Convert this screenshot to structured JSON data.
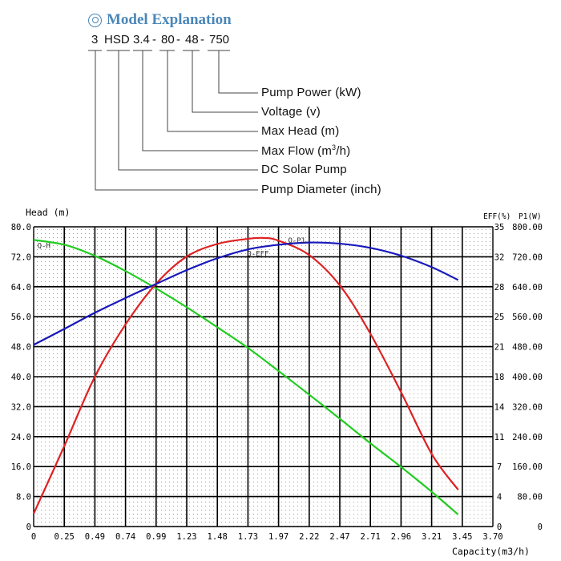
{
  "explanation": {
    "title": "Model Explanation",
    "title_color": "#4a86b8",
    "code_parts": [
      "3",
      "HSD",
      "3.4",
      "-",
      "80",
      "-",
      "48",
      "-",
      "750"
    ],
    "descriptions": {
      "power": "Pump Power (kW)",
      "voltage": "Voltage (v)",
      "head": "Max Head (m)",
      "flow_pre": "Max Flow (m",
      "flow_sup": "3",
      "flow_post": "/h)",
      "type": "DC Solar Pump",
      "diameter": "Pump Diameter (inch)"
    }
  },
  "chart_data": {
    "type": "line",
    "xlabel": "Capacity(m3/h)",
    "ylabel": "Head (m)",
    "y2label": "EFF(%)",
    "y3label": "P1(W)",
    "x_ticks": [
      "0",
      "0.25",
      "0.49",
      "0.74",
      "0.99",
      "1.23",
      "1.48",
      "1.73",
      "1.97",
      "2.22",
      "2.47",
      "2.71",
      "2.96",
      "3.21",
      "3.45",
      "3.70"
    ],
    "y_ticks": [
      "0",
      "8.0",
      "16.0",
      "24.0",
      "32.0",
      "40.0",
      "48.0",
      "56.0",
      "64.0",
      "72.0",
      "80.0"
    ],
    "y2_ticks": [
      "0",
      "4",
      "7",
      "11",
      "14",
      "18",
      "21",
      "25",
      "28",
      "32",
      "35"
    ],
    "y3_ticks": [
      "0",
      "80.00",
      "160.00",
      "240.00",
      "320.00",
      "400.00",
      "480.00",
      "560.00",
      "640.00",
      "720.00",
      "800.00"
    ],
    "xlim": [
      0,
      3.7
    ],
    "ylim": [
      0,
      80
    ],
    "y2lim": [
      0,
      35
    ],
    "y3lim": [
      0,
      800
    ],
    "grid": true,
    "curve_labels": {
      "head": "Q-H",
      "eff": "Q-EFF",
      "power": "Q-P1"
    },
    "series": [
      {
        "color": "#22cc22",
        "axis": "head",
        "x": [
          0,
          0.25,
          0.49,
          0.74,
          0.99,
          1.23,
          1.48,
          1.73,
          1.97,
          2.22,
          2.47,
          2.71,
          2.96,
          3.21,
          3.42
        ],
        "values": [
          76.5,
          75.2,
          72.3,
          68.2,
          63.5,
          58.6,
          53.2,
          47.6,
          41.6,
          35.2,
          28.7,
          22.3,
          15.9,
          9.2,
          3.2
        ]
      },
      {
        "color": "#dd2222",
        "axis": "eff",
        "x": [
          0,
          0.25,
          0.49,
          0.74,
          0.99,
          1.23,
          1.48,
          1.73,
          1.85,
          1.97,
          2.22,
          2.47,
          2.71,
          2.96,
          3.21,
          3.42
        ],
        "values": [
          1.5,
          9.5,
          17.4,
          23.6,
          28.4,
          31.5,
          33.0,
          33.6,
          33.7,
          33.4,
          31.7,
          28.1,
          22.6,
          15.7,
          8.4,
          4.3
        ]
      },
      {
        "color": "#1818bb",
        "axis": "power",
        "x": [
          0,
          0.25,
          0.49,
          0.74,
          0.99,
          1.23,
          1.48,
          1.73,
          1.97,
          2.22,
          2.47,
          2.71,
          2.96,
          3.21,
          3.42
        ],
        "values": [
          485,
          528,
          570,
          610,
          648,
          684,
          716,
          740,
          752,
          758,
          755,
          744,
          723,
          692,
          658
        ]
      }
    ]
  }
}
